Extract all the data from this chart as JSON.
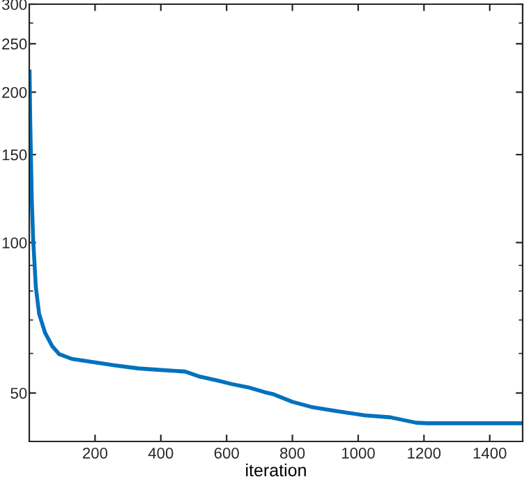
{
  "chart_data": {
    "type": "line",
    "xlabel": "iteration",
    "x": [
      1,
      3,
      5,
      8,
      12,
      20,
      30,
      48,
      70,
      91,
      130,
      190,
      260,
      332,
      400,
      474,
      515,
      570,
      616,
      672,
      715,
      743,
      800,
      857,
      935,
      1020,
      1098,
      1176,
      1211,
      1300,
      1400,
      1500
    ],
    "series": [
      {
        "color": "#0072bd",
        "values": [
          220,
          175,
          150,
          120,
          101,
          81.4,
          72,
          66,
          62,
          59.8,
          58.5,
          57.7,
          56.8,
          56.0,
          55.6,
          55.2,
          54.0,
          53.0,
          52.1,
          51.2,
          50.2,
          49.7,
          48.0,
          46.9,
          46.0,
          45.1,
          44.7,
          43.6,
          43.5,
          43.5,
          43.5,
          43.5
        ]
      }
    ],
    "log": "y",
    "xlim": [
      0,
      1500
    ],
    "ylim": [
      40,
      300
    ],
    "xticks": [
      200,
      400,
      600,
      800,
      1000,
      1200,
      1400
    ],
    "yticks": [
      50,
      100,
      150,
      200,
      250,
      300
    ],
    "grid": false,
    "legend": false
  }
}
